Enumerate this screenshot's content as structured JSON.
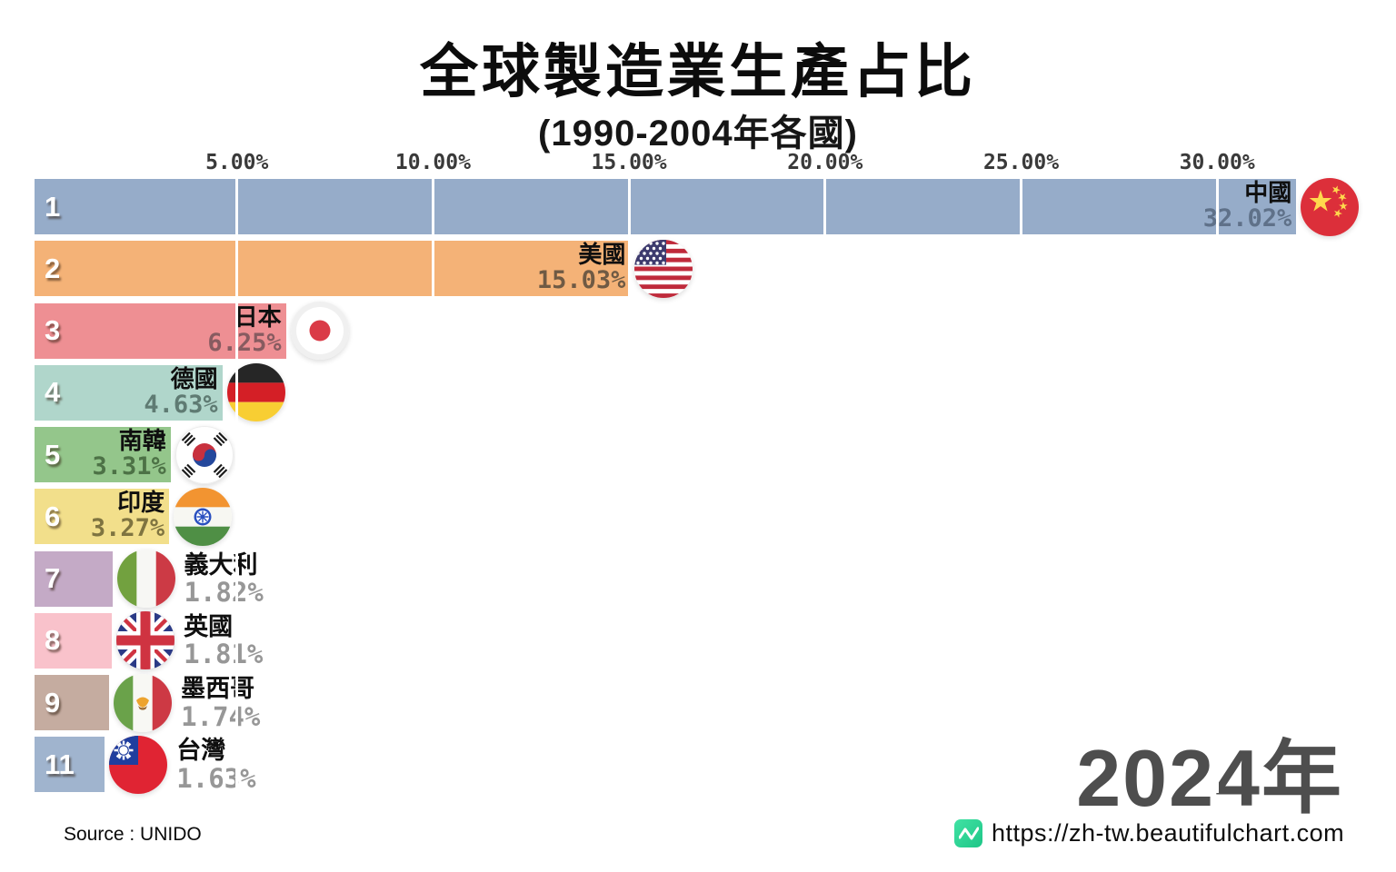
{
  "title": "全球製造業生產占比",
  "subtitle": "(1990-2004年各國)",
  "year_badge": "2024年",
  "footer": {
    "source": "Source : UNIDO",
    "url": "https://zh-tw.beautifulchart.com",
    "logo_color": "#2bd596"
  },
  "axis": {
    "ticks": [
      {
        "label": "5.00%",
        "value": 5
      },
      {
        "label": "10.00%",
        "value": 10
      },
      {
        "label": "15.00%",
        "value": 15
      },
      {
        "label": "20.00%",
        "value": 20
      },
      {
        "label": "25.00%",
        "value": 25
      },
      {
        "label": "30.00%",
        "value": 30
      }
    ]
  },
  "chart_data": {
    "type": "bar",
    "orientation": "horizontal",
    "unit": "percent",
    "title": "全球製造業生產占比",
    "subtitle": "(1990-2004年各國)",
    "frame_year": "2024年",
    "xlim": [
      0,
      34.5
    ],
    "x_axis_ticks": [
      "5.00%",
      "10.00%",
      "15.00%",
      "20.00%",
      "25.00%",
      "30.00%"
    ],
    "grid": "vertical-white-lines",
    "bars": [
      {
        "rank": "1",
        "country": "中國",
        "value": 32.02,
        "value_label": "32.02%",
        "color": "#96acc9",
        "value_color": "#5f7189",
        "flag": "china",
        "label_placement": "inside"
      },
      {
        "rank": "2",
        "country": "美國",
        "value": 15.03,
        "value_label": "15.03%",
        "color": "#f4b277",
        "value_color": "#6f5a44",
        "flag": "usa",
        "label_placement": "inside"
      },
      {
        "rank": "3",
        "country": "日本",
        "value": 6.25,
        "value_label": "6.25%",
        "color": "#ee8f93",
        "value_color": "#875b60",
        "flag": "japan",
        "label_placement": "inside"
      },
      {
        "rank": "4",
        "country": "德國",
        "value": 4.63,
        "value_label": "4.63%",
        "color": "#b0d6cb",
        "value_color": "#5f7b73",
        "flag": "germany",
        "label_placement": "inside"
      },
      {
        "rank": "5",
        "country": "南韓",
        "value": 3.31,
        "value_label": "3.31%",
        "color": "#94c68b",
        "value_color": "#4d7246",
        "flag": "south-korea",
        "label_placement": "inside"
      },
      {
        "rank": "6",
        "country": "印度",
        "value": 3.27,
        "value_label": "3.27%",
        "color": "#f2df8b",
        "value_color": "#7f7440",
        "flag": "india",
        "label_placement": "inside"
      },
      {
        "rank": "7",
        "country": "義大利",
        "value": 1.82,
        "value_label": "1.82%",
        "color": "#c4aac6",
        "value_color": "#979797",
        "flag": "italy",
        "label_placement": "outside"
      },
      {
        "rank": "8",
        "country": "英國",
        "value": 1.81,
        "value_label": "1.81%",
        "color": "#f9c2cb",
        "value_color": "#979797",
        "flag": "uk",
        "label_placement": "outside"
      },
      {
        "rank": "9",
        "country": "墨西哥",
        "value": 1.74,
        "value_label": "1.74%",
        "color": "#c5aca0",
        "value_color": "#979797",
        "flag": "mexico",
        "label_placement": "outside"
      },
      {
        "rank": "11",
        "country": "台灣",
        "value": 1.63,
        "value_label": "1.63%",
        "color": "#a0b4ce",
        "value_color": "#979797",
        "flag": "taiwan",
        "label_placement": "outside"
      }
    ]
  }
}
